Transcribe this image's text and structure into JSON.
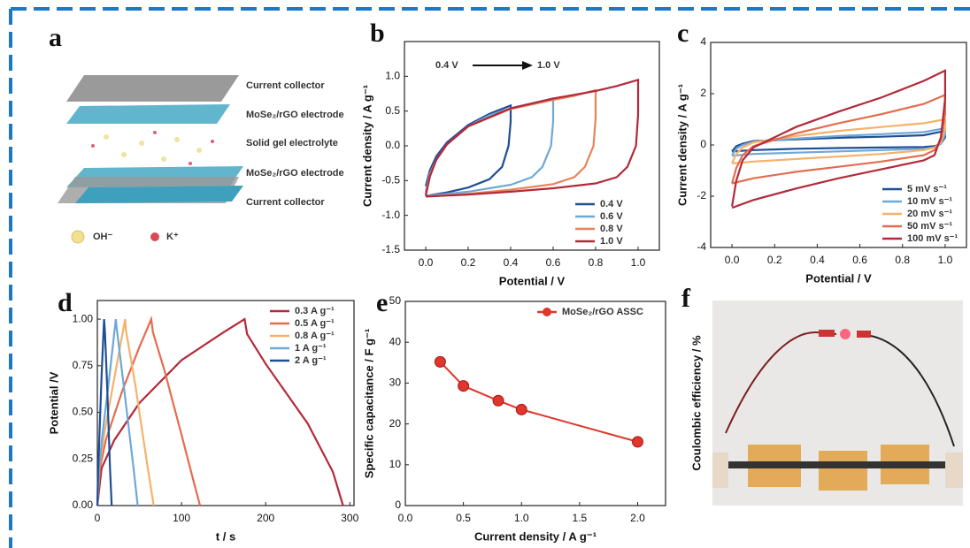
{
  "diagram": {
    "panel": "a",
    "layers": [
      "Current collector",
      "MoSe₂/rGO electrode",
      "Solid gel electrolyte",
      "MoSe₂/rGO electrode",
      "Current collector"
    ],
    "legend": [
      "OH⁻",
      "K⁺"
    ]
  },
  "chart_data": [
    {
      "type": "line",
      "panel": "b",
      "xlabel": "Potential / V",
      "ylabel": "Current density / A g⁻¹",
      "xlim": [
        -0.1,
        1.1
      ],
      "ylim": [
        -1.5,
        1.5
      ],
      "xticks": [
        {
          "value": 0,
          "label": "0.0"
        },
        0.2,
        0.4,
        0.6,
        0.8,
        {
          "value": 1,
          "label": "1.0"
        }
      ],
      "yticks": [
        -1.5,
        {
          "value": -1,
          "label": "-1.0"
        },
        -0.5,
        {
          "value": 0,
          "label": "0.0"
        },
        0.5,
        {
          "value": 1,
          "label": "1.0"
        }
      ],
      "legend": "lower right",
      "annotations": [
        "0.4 V",
        "1.0 V"
      ],
      "series": [
        {
          "name": "0.4 V",
          "color": "#1f4e96",
          "x": [
            0,
            0.02,
            0.05,
            0.1,
            0.2,
            0.3,
            0.4,
            0.4,
            0.39,
            0.36,
            0.3,
            0.2,
            0.1,
            0
          ],
          "values": [
            -0.58,
            -0.35,
            -0.15,
            0.05,
            0.3,
            0.46,
            0.58,
            0.35,
            0.0,
            -0.3,
            -0.48,
            -0.6,
            -0.67,
            -0.72
          ]
        },
        {
          "name": "0.6 V",
          "color": "#6fa8d6",
          "x": [
            0,
            0.02,
            0.05,
            0.1,
            0.2,
            0.3,
            0.4,
            0.5,
            0.6,
            0.6,
            0.59,
            0.55,
            0.5,
            0.4,
            0.3,
            0.2,
            0.1,
            0
          ],
          "values": [
            -0.66,
            -0.4,
            -0.2,
            0.02,
            0.28,
            0.44,
            0.54,
            0.61,
            0.68,
            0.35,
            0,
            -0.3,
            -0.45,
            -0.56,
            -0.61,
            -0.66,
            -0.69,
            -0.72
          ]
        },
        {
          "name": "0.8 V",
          "color": "#e8845a",
          "x": [
            0,
            0.02,
            0.05,
            0.1,
            0.2,
            0.4,
            0.6,
            0.7,
            0.8,
            0.8,
            0.79,
            0.75,
            0.7,
            0.6,
            0.4,
            0.2,
            0
          ],
          "values": [
            -0.7,
            -0.42,
            -0.2,
            0.02,
            0.28,
            0.53,
            0.66,
            0.72,
            0.8,
            0.4,
            0,
            -0.3,
            -0.45,
            -0.55,
            -0.63,
            -0.69,
            -0.73
          ]
        },
        {
          "name": "1.0 V",
          "color": "#b22a3a",
          "x": [
            0,
            0.02,
            0.05,
            0.1,
            0.2,
            0.4,
            0.6,
            0.8,
            0.9,
            1.0,
            1.0,
            0.99,
            0.95,
            0.9,
            0.8,
            0.6,
            0.4,
            0.2,
            0
          ],
          "values": [
            -0.72,
            -0.44,
            -0.2,
            0.02,
            0.28,
            0.54,
            0.68,
            0.79,
            0.86,
            0.95,
            0.45,
            0,
            -0.3,
            -0.45,
            -0.54,
            -0.61,
            -0.66,
            -0.7,
            -0.73
          ]
        }
      ]
    },
    {
      "type": "line",
      "panel": "c",
      "xlabel": "Potential / V",
      "ylabel": "Current density / A g⁻¹",
      "xlim": [
        -0.1,
        1.1
      ],
      "ylim": [
        -4,
        4
      ],
      "xticks": [
        {
          "value": 0,
          "label": "0.0"
        },
        0.2,
        0.4,
        0.6,
        0.8,
        {
          "value": 1,
          "label": "1.0"
        }
      ],
      "yticks": [
        -4,
        -2,
        0,
        2,
        4
      ],
      "legend": "lower right",
      "series": [
        {
          "name": "5  mV s⁻¹",
          "color": "#1f4e96",
          "x": [
            0,
            0.02,
            0.05,
            0.1,
            0.3,
            0.5,
            0.7,
            0.9,
            1.0,
            1.0,
            0.98,
            0.95,
            0.9,
            0.7,
            0.5,
            0.3,
            0.1,
            0
          ],
          "values": [
            -0.25,
            -0.05,
            0.05,
            0.15,
            0.22,
            0.28,
            0.32,
            0.38,
            0.55,
            0.3,
            0.05,
            -0.05,
            -0.08,
            -0.1,
            -0.12,
            -0.15,
            -0.2,
            -0.25
          ]
        },
        {
          "name": "10  mV s⁻¹",
          "color": "#6fa8d6",
          "x": [
            0,
            0.02,
            0.05,
            0.1,
            0.3,
            0.5,
            0.7,
            0.9,
            1.0,
            1.0,
            0.98,
            0.95,
            0.9,
            0.7,
            0.5,
            0.3,
            0.1,
            0
          ],
          "values": [
            -0.4,
            -0.15,
            0,
            0.12,
            0.25,
            0.35,
            0.42,
            0.5,
            0.65,
            0.4,
            0.05,
            -0.1,
            -0.15,
            -0.2,
            -0.25,
            -0.3,
            -0.35,
            -0.42
          ]
        },
        {
          "name": "20  mV s⁻¹",
          "color": "#f5b26b",
          "x": [
            0,
            0.02,
            0.05,
            0.1,
            0.3,
            0.5,
            0.7,
            0.9,
            1.0,
            1.0,
            0.98,
            0.95,
            0.9,
            0.7,
            0.5,
            0.3,
            0.1,
            0
          ],
          "values": [
            -0.7,
            -0.35,
            -0.1,
            0.1,
            0.35,
            0.55,
            0.7,
            0.85,
            1.0,
            0.6,
            0.1,
            -0.1,
            -0.2,
            -0.35,
            -0.45,
            -0.55,
            -0.65,
            -0.72
          ]
        },
        {
          "name": "50  mV s⁻¹",
          "color": "#e36c4f",
          "x": [
            0,
            0.02,
            0.05,
            0.1,
            0.3,
            0.5,
            0.7,
            0.9,
            1.0,
            1.0,
            0.98,
            0.95,
            0.9,
            0.7,
            0.5,
            0.3,
            0.1,
            0
          ],
          "values": [
            -1.5,
            -0.9,
            -0.4,
            -0.05,
            0.45,
            0.85,
            1.2,
            1.6,
            1.95,
            1.2,
            0.2,
            -0.2,
            -0.4,
            -0.65,
            -0.85,
            -1.05,
            -1.3,
            -1.5
          ]
        },
        {
          "name": "100 mV s⁻¹",
          "color": "#b22a3a",
          "x": [
            0,
            0.02,
            0.05,
            0.1,
            0.3,
            0.5,
            0.7,
            0.9,
            1.0,
            1.0,
            0.98,
            0.95,
            0.9,
            0.7,
            0.5,
            0.3,
            0.1,
            0
          ],
          "values": [
            -2.4,
            -1.4,
            -0.6,
            -0.1,
            0.7,
            1.3,
            1.85,
            2.5,
            2.9,
            1.8,
            0.3,
            -0.4,
            -0.6,
            -0.95,
            -1.3,
            -1.7,
            -2.15,
            -2.45
          ]
        }
      ]
    },
    {
      "type": "line",
      "panel": "d",
      "xlabel": "t / s",
      "ylabel": "Potential /V",
      "xlim": [
        0,
        305
      ],
      "ylim": [
        0,
        1.1
      ],
      "xticks": [
        0,
        100,
        200,
        300
      ],
      "yticks": [
        {
          "value": 0,
          "label": "0.00"
        },
        {
          "value": 0.25,
          "label": "0.25"
        },
        {
          "value": 0.5,
          "label": "0.50"
        },
        {
          "value": 0.75,
          "label": "0.75"
        },
        {
          "value": 1,
          "label": "1.00"
        }
      ],
      "legend": "upper right",
      "series": [
        {
          "name": "0.3 A g⁻¹",
          "color": "#b22a3a",
          "x": [
            0,
            5,
            20,
            50,
            100,
            150,
            175,
            178,
            200,
            250,
            280,
            292
          ],
          "values": [
            0,
            0.2,
            0.35,
            0.55,
            0.78,
            0.93,
            1.0,
            0.92,
            0.76,
            0.44,
            0.18,
            0
          ]
        },
        {
          "name": "0.5 A g⁻¹",
          "color": "#e36c4f",
          "x": [
            0,
            3,
            10,
            30,
            50,
            64,
            66,
            80,
            100,
            115,
            122
          ],
          "values": [
            0,
            0.2,
            0.35,
            0.62,
            0.85,
            1.0,
            0.93,
            0.72,
            0.38,
            0.12,
            0
          ]
        },
        {
          "name": "0.8 A g⁻¹",
          "color": "#f5b26b",
          "x": [
            0,
            2,
            8,
            20,
            33,
            34,
            45,
            60,
            67
          ],
          "values": [
            0,
            0.2,
            0.38,
            0.68,
            1.0,
            0.94,
            0.65,
            0.2,
            0
          ]
        },
        {
          "name": "1  A g⁻¹",
          "color": "#6fa8d6",
          "x": [
            0,
            2,
            6,
            14,
            22,
            23,
            32,
            43,
            48
          ],
          "values": [
            0,
            0.2,
            0.38,
            0.68,
            1.0,
            0.95,
            0.62,
            0.2,
            0
          ]
        },
        {
          "name": "2  A g⁻¹",
          "color": "#1f4e96",
          "x": [
            0,
            1,
            3,
            5,
            8,
            9,
            12,
            15,
            17
          ],
          "values": [
            0,
            0.2,
            0.45,
            0.7,
            1.0,
            0.93,
            0.6,
            0.2,
            0
          ]
        }
      ]
    },
    {
      "type": "line",
      "panel": "e",
      "xlabel": "Current density / A g⁻¹",
      "ylabel": "Specific capacitance / F g⁻¹",
      "xlim": [
        0,
        2.24
      ],
      "ylim": [
        0,
        50
      ],
      "xticks": [
        {
          "value": 0,
          "label": "0.0"
        },
        0.5,
        {
          "value": 1,
          "label": "1.0"
        },
        1.5,
        {
          "value": 2,
          "label": "2.0"
        }
      ],
      "yticks": [
        0,
        10,
        20,
        30,
        40,
        50
      ],
      "legend": "upper right",
      "markers": true,
      "series": [
        {
          "name": "MoSe₂/rGO ASSC",
          "color": "#e0362c",
          "x": [
            0.3,
            0.5,
            0.8,
            1.0,
            2.0
          ],
          "values": [
            35.2,
            29.3,
            25.7,
            23.5,
            15.6
          ]
        }
      ]
    }
  ],
  "photo": {
    "panel": "f",
    "ylabel": "Coulombic efficiency / %"
  }
}
